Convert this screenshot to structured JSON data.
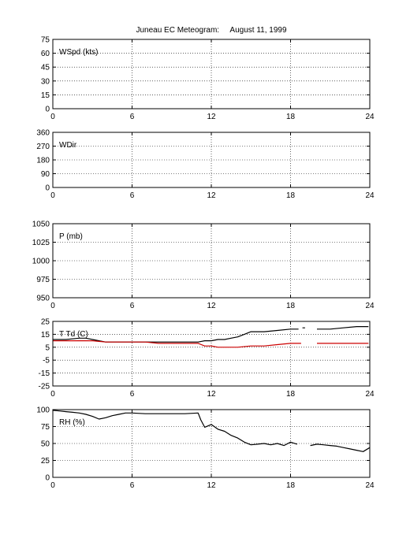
{
  "title": "Juneau EC Meteogram:     August 11, 1999",
  "chart_data": [
    {
      "type": "line",
      "label": "WSpd (kts)",
      "xlim": [
        0,
        24
      ],
      "ylim": [
        0,
        75
      ],
      "xticks": [
        0,
        6,
        12,
        18,
        24
      ],
      "yticks": [
        0,
        15,
        30,
        45,
        60,
        75
      ],
      "grid": true,
      "series": []
    },
    {
      "type": "line",
      "label": "WDir",
      "xlim": [
        0,
        24
      ],
      "ylim": [
        0,
        360
      ],
      "xticks": [
        0,
        6,
        12,
        18,
        24
      ],
      "yticks": [
        0,
        90,
        180,
        270,
        360
      ],
      "grid": true,
      "series": []
    },
    {
      "type": "line",
      "label": "P (mb)",
      "xlim": [
        0,
        24
      ],
      "ylim": [
        950,
        1050
      ],
      "xticks": [
        0,
        6,
        12,
        18,
        24
      ],
      "yticks": [
        950,
        975,
        1000,
        1025,
        1050
      ],
      "grid": true,
      "series": []
    },
    {
      "type": "line",
      "label": "T Td (C)",
      "xlim": [
        0,
        24
      ],
      "ylim": [
        -25,
        25
      ],
      "xticks": [
        0,
        6,
        12,
        18,
        24
      ],
      "yticks": [
        -25,
        -15,
        -5,
        5,
        15,
        25
      ],
      "grid": true,
      "series": [
        {
          "color": "#000000",
          "x": [
            0,
            1,
            2,
            2.5,
            3,
            3.5,
            4,
            5,
            6,
            7,
            8,
            9,
            10,
            11,
            11.5,
            12,
            12.5,
            13,
            13.5,
            14,
            14.5,
            15,
            16,
            17,
            18,
            18.6,
            null,
            18.9,
            19.1,
            null,
            20,
            21,
            22,
            23,
            23.9
          ],
          "y": [
            11,
            11,
            12,
            12,
            11,
            10,
            9,
            9,
            9,
            9,
            9,
            9,
            9,
            9,
            10,
            10,
            11,
            11,
            12,
            13,
            15,
            17,
            17,
            18,
            19,
            19,
            null,
            20,
            20,
            null,
            19,
            19,
            20,
            21,
            21
          ]
        },
        {
          "color": "#cc0000",
          "x": [
            0,
            1,
            2,
            3,
            4,
            5,
            6,
            7,
            8,
            9,
            10,
            11,
            11.5,
            12,
            12.5,
            13,
            13.5,
            14,
            15,
            16,
            17,
            18,
            18.8,
            null,
            20,
            21,
            22,
            23,
            23.9
          ],
          "y": [
            10,
            10,
            10,
            10,
            9,
            9,
            9,
            9,
            8,
            8,
            8,
            8,
            6,
            6,
            5,
            5,
            5,
            5,
            6,
            6,
            7,
            8,
            8,
            null,
            8,
            8,
            8,
            8,
            8
          ]
        }
      ]
    },
    {
      "type": "line",
      "label": "RH (%)",
      "xlim": [
        0,
        24
      ],
      "ylim": [
        0,
        100
      ],
      "xticks": [
        0,
        6,
        12,
        18,
        24
      ],
      "yticks": [
        0,
        25,
        50,
        75,
        100
      ],
      "grid": true,
      "series": [
        {
          "color": "#000000",
          "x": [
            0,
            0.5,
            1,
            1.5,
            2,
            2.5,
            3,
            3.5,
            4,
            4.5,
            5,
            5.5,
            6,
            7,
            8,
            9,
            10,
            11,
            11.2,
            11.5,
            12,
            12.5,
            13,
            13.5,
            14,
            14.5,
            15,
            15.5,
            16,
            16.5,
            17,
            17.5,
            18,
            18.5,
            null,
            19.5,
            20,
            20.5,
            21,
            21.5,
            22,
            22.5,
            23,
            23.5,
            24
          ],
          "y": [
            99,
            98,
            97,
            96,
            95,
            93,
            90,
            86,
            88,
            91,
            93,
            95,
            95,
            94,
            94,
            94,
            94,
            95,
            85,
            74,
            78,
            71,
            68,
            62,
            58,
            52,
            48,
            49,
            50,
            48,
            50,
            47,
            52,
            49,
            null,
            47,
            49,
            48,
            47,
            46,
            44,
            42,
            40,
            38,
            44
          ]
        }
      ]
    }
  ]
}
